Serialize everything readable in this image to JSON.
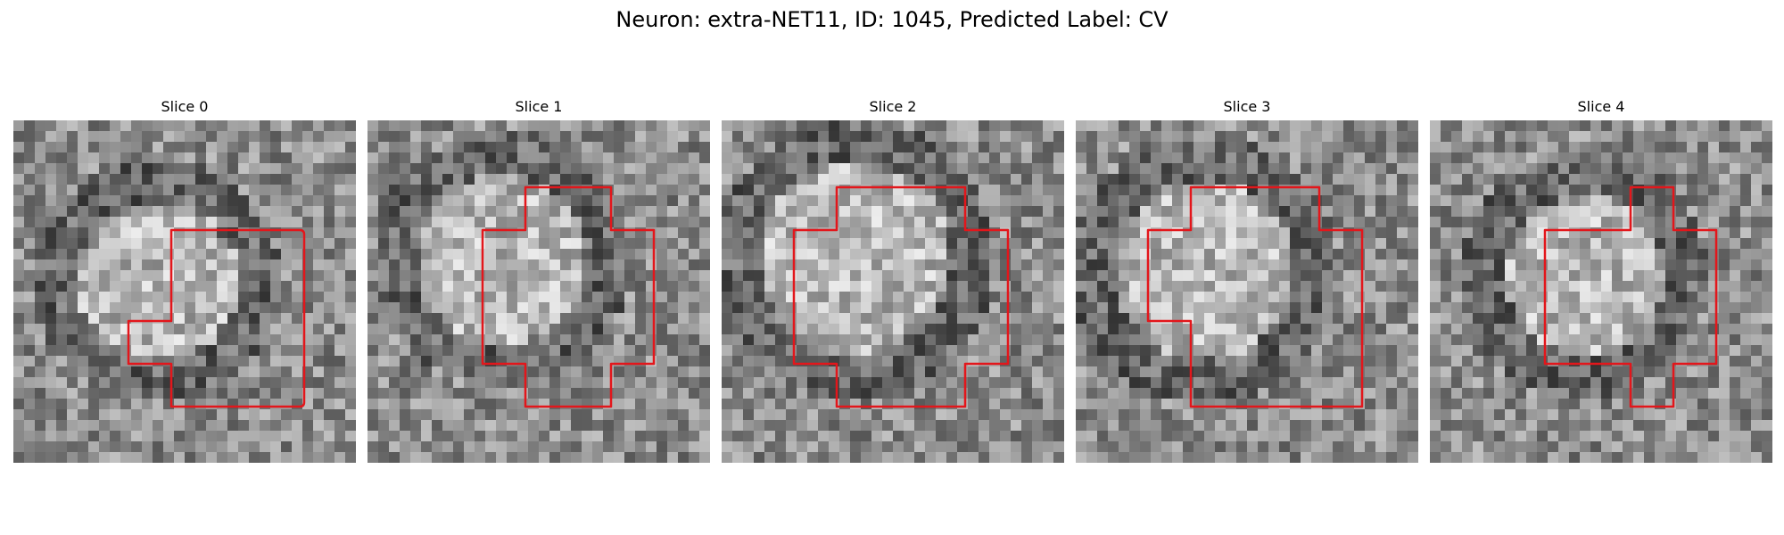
{
  "figure": {
    "title": "Neuron: extra-NET11, ID: 1045, Predicted Label: CV",
    "outline_color": "#e3161b",
    "colormap": "grayscale",
    "slices": [
      {
        "title": "Slice 0"
      },
      {
        "title": "Slice 1"
      },
      {
        "title": "Slice 2"
      },
      {
        "title": "Slice 3"
      },
      {
        "title": "Slice 4"
      }
    ]
  }
}
